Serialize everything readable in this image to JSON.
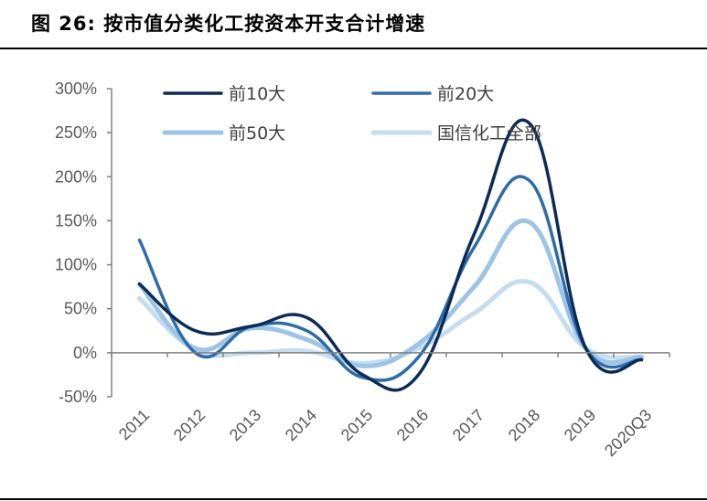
{
  "header": {
    "title": "图 26:  按市值分类化工按资本开支合计增速"
  },
  "chart_data": {
    "type": "line",
    "title": "图 26:  按市值分类化工按资本开支合计增速",
    "xlabel": "",
    "ylabel": "",
    "categories": [
      "2011",
      "2012",
      "2013",
      "2014",
      "2015",
      "2016",
      "2017",
      "2018",
      "2019",
      "2020Q3"
    ],
    "ylim": [
      -50,
      300
    ],
    "yticks": [
      -50,
      0,
      50,
      100,
      150,
      200,
      250,
      300
    ],
    "ytick_labels": [
      "-50%",
      "0%",
      "50%",
      "100%",
      "150%",
      "200%",
      "250%",
      "300%"
    ],
    "legend": "top",
    "grid": false,
    "series": [
      {
        "name": "前10大",
        "values": [
          78,
          25,
          30,
          40,
          -25,
          -25,
          135,
          260,
          5,
          -8
        ],
        "color": "#0d2b57"
      },
      {
        "name": "前20大",
        "values": [
          128,
          0,
          30,
          25,
          -28,
          -5,
          120,
          195,
          5,
          -8
        ],
        "color": "#2e6ca8"
      },
      {
        "name": "前50大",
        "values": [
          78,
          5,
          28,
          15,
          -15,
          10,
          75,
          148,
          5,
          -5
        ],
        "color": "#9dc3e6"
      },
      {
        "name": "国信化工全部",
        "values": [
          62,
          3,
          0,
          2,
          -12,
          5,
          45,
          80,
          5,
          -5
        ],
        "color": "#c5ddf1"
      }
    ]
  }
}
